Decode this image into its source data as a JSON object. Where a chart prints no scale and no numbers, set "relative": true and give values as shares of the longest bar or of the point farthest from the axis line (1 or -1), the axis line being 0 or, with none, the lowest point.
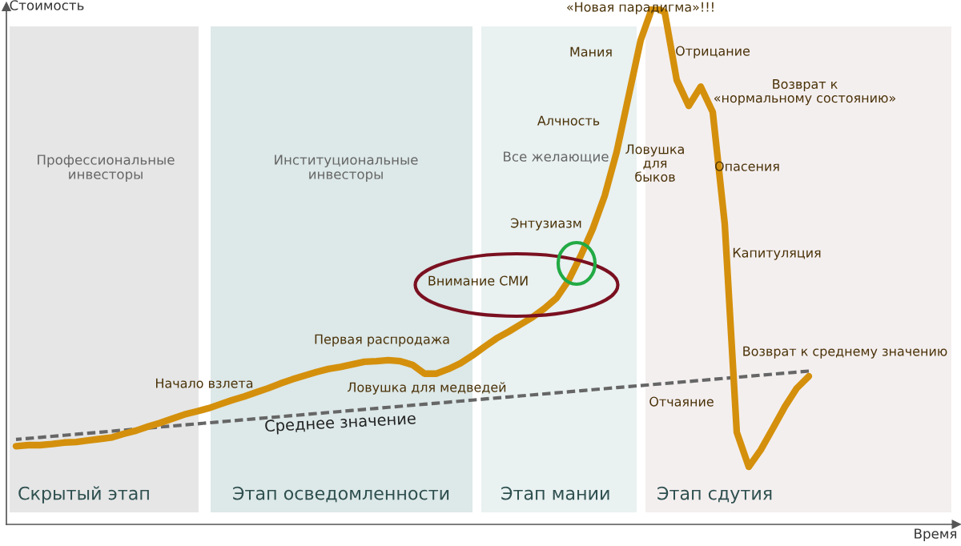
{
  "chart_data": {
    "type": "line",
    "relative": true,
    "ylabel": "Стоимость",
    "legend": false,
    "categories": [
      null,
      null,
      null,
      null,
      null,
      null,
      null,
      null,
      null,
      null,
      null,
      null,
      null,
      null,
      null,
      null,
      null,
      null,
      null,
      null,
      null,
      null,
      null,
      null,
      null,
      null,
      null,
      null,
      null,
      null,
      null,
      null,
      null,
      null,
      null,
      null,
      null,
      null,
      null,
      null,
      null,
      null,
      null,
      null,
      null,
      null,
      null,
      null,
      null,
      null,
      null,
      null,
      null,
      null,
      null,
      null,
      null,
      null,
      null,
      null,
      null,
      null,
      null,
      null,
      null,
      null,
      null
    ],
    "series": [
      {
        "color": "#d4900c",
        "values": [
          0.151,
          0.153,
          0.153,
          0.155,
          0.158,
          0.159,
          0.162,
          0.165,
          0.168,
          0.175,
          0.181,
          0.189,
          0.196,
          0.204,
          0.212,
          0.218,
          0.224,
          0.232,
          0.24,
          0.247,
          0.255,
          0.263,
          0.272,
          0.28,
          0.287,
          0.294,
          0.3,
          0.304,
          0.309,
          0.314,
          0.315,
          0.317,
          0.315,
          0.308,
          0.291,
          0.291,
          0.3,
          0.311,
          0.326,
          0.343,
          0.359,
          0.372,
          0.386,
          0.4,
          0.417,
          0.437,
          0.471,
          0.518,
          0.57,
          0.634,
          0.719,
          0.827,
          0.935,
          1.0,
          0.989,
          0.858,
          0.808,
          0.845,
          0.796,
          0.58,
          0.178,
          0.111,
          0.144,
          0.185,
          0.227,
          0.263,
          0.286
        ]
      },
      {
        "name": "Среднее значение",
        "color": "#666666",
        "line_style": "dashed",
        "values": [
          0.164,
          0.166,
          0.168,
          0.17,
          0.172,
          0.174,
          0.176,
          0.178,
          0.18,
          0.182,
          0.184,
          0.186,
          0.188,
          0.19,
          0.192,
          0.194,
          0.196,
          0.198,
          0.2,
          0.202,
          0.204,
          0.206,
          0.208,
          0.21,
          0.212,
          0.214,
          0.216,
          0.218,
          0.22,
          0.222,
          0.224,
          0.226,
          0.228,
          0.23,
          0.232,
          0.234,
          0.236,
          0.238,
          0.24,
          0.242,
          0.244,
          0.246,
          0.248,
          0.25,
          0.252,
          0.254,
          0.256,
          0.258,
          0.26,
          0.262,
          0.264,
          0.266,
          0.268,
          0.27,
          0.272,
          0.274,
          0.276,
          0.278,
          0.28,
          0.282,
          0.284,
          0.286,
          0.288,
          0.29,
          0.292,
          0.294,
          0.296
        ]
      }
    ],
    "annotations": [
      "«Новая парадигма»!!!",
      "Мания",
      "Отрицание",
      "Возврат к\n«нормальному состоянию»",
      "Алчность",
      "Ловушка\nдля\nбыков",
      "Опасения",
      "Энтузиазм",
      "Капитуляция",
      "Внимание СМИ",
      "Первая распродажа",
      "Возврат к среднему значению",
      "Начало взлета",
      "Ловушка для медведей",
      "Отчаяние",
      "Профессиональные\nинвесторы",
      "Институциональные\nинвесторы",
      "Все желающие",
      "Скрытый этап",
      "Этап осведомленности",
      "Этап мании",
      "Этап сдутия",
      "Время"
    ]
  }
}
